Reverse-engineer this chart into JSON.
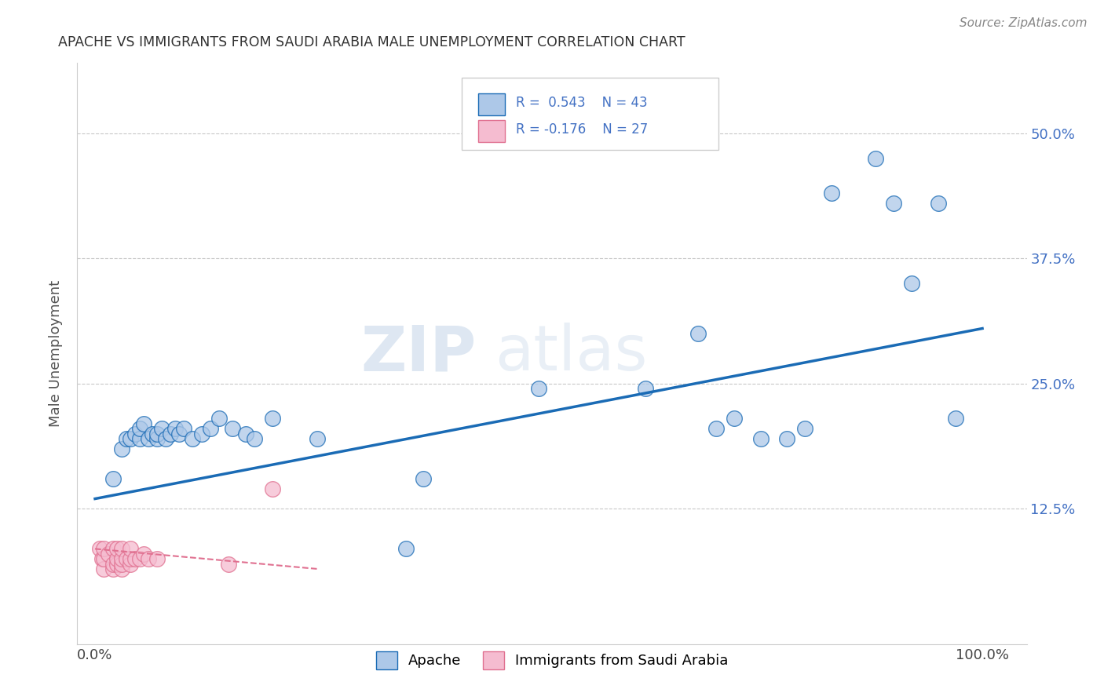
{
  "title": "APACHE VS IMMIGRANTS FROM SAUDI ARABIA MALE UNEMPLOYMENT CORRELATION CHART",
  "source": "Source: ZipAtlas.com",
  "ylabel": "Male Unemployment",
  "xlim": [
    -0.02,
    1.05
  ],
  "ylim": [
    -0.01,
    0.57
  ],
  "xtick_labels": [
    "0.0%",
    "100.0%"
  ],
  "xtick_positions": [
    0.0,
    1.0
  ],
  "ytick_labels": [
    "12.5%",
    "25.0%",
    "37.5%",
    "50.0%"
  ],
  "ytick_positions": [
    0.125,
    0.25,
    0.375,
    0.5
  ],
  "color_apache": "#adc8e8",
  "color_saudi": "#f5bcd0",
  "color_line_apache": "#1a6bb5",
  "color_line_saudi": "#e07090",
  "watermark_part1": "ZIP",
  "watermark_part2": "atlas",
  "apache_x": [
    0.02,
    0.03,
    0.035,
    0.04,
    0.045,
    0.05,
    0.05,
    0.055,
    0.06,
    0.065,
    0.07,
    0.07,
    0.075,
    0.08,
    0.085,
    0.09,
    0.095,
    0.1,
    0.11,
    0.12,
    0.13,
    0.14,
    0.155,
    0.17,
    0.18,
    0.2,
    0.25,
    0.35,
    0.37,
    0.5,
    0.62,
    0.68,
    0.7,
    0.72,
    0.75,
    0.78,
    0.8,
    0.83,
    0.88,
    0.9,
    0.92,
    0.95,
    0.97
  ],
  "apache_y": [
    0.155,
    0.185,
    0.195,
    0.195,
    0.2,
    0.195,
    0.205,
    0.21,
    0.195,
    0.2,
    0.195,
    0.2,
    0.205,
    0.195,
    0.2,
    0.205,
    0.2,
    0.205,
    0.195,
    0.2,
    0.205,
    0.215,
    0.205,
    0.2,
    0.195,
    0.215,
    0.195,
    0.085,
    0.155,
    0.245,
    0.245,
    0.3,
    0.205,
    0.215,
    0.195,
    0.195,
    0.205,
    0.44,
    0.475,
    0.43,
    0.35,
    0.43,
    0.215
  ],
  "saudi_x": [
    0.005,
    0.008,
    0.01,
    0.01,
    0.01,
    0.015,
    0.02,
    0.02,
    0.02,
    0.025,
    0.025,
    0.025,
    0.03,
    0.03,
    0.03,
    0.03,
    0.035,
    0.04,
    0.04,
    0.04,
    0.045,
    0.05,
    0.055,
    0.06,
    0.07,
    0.15,
    0.2
  ],
  "saudi_y": [
    0.085,
    0.075,
    0.065,
    0.075,
    0.085,
    0.08,
    0.065,
    0.07,
    0.085,
    0.07,
    0.075,
    0.085,
    0.065,
    0.07,
    0.075,
    0.085,
    0.075,
    0.07,
    0.075,
    0.085,
    0.075,
    0.075,
    0.08,
    0.075,
    0.075,
    0.07,
    0.145
  ],
  "apache_line_x": [
    0.0,
    1.0
  ],
  "apache_line_y": [
    0.135,
    0.305
  ],
  "saudi_line_x": [
    0.0,
    0.25
  ],
  "saudi_line_y": [
    0.085,
    0.065
  ]
}
